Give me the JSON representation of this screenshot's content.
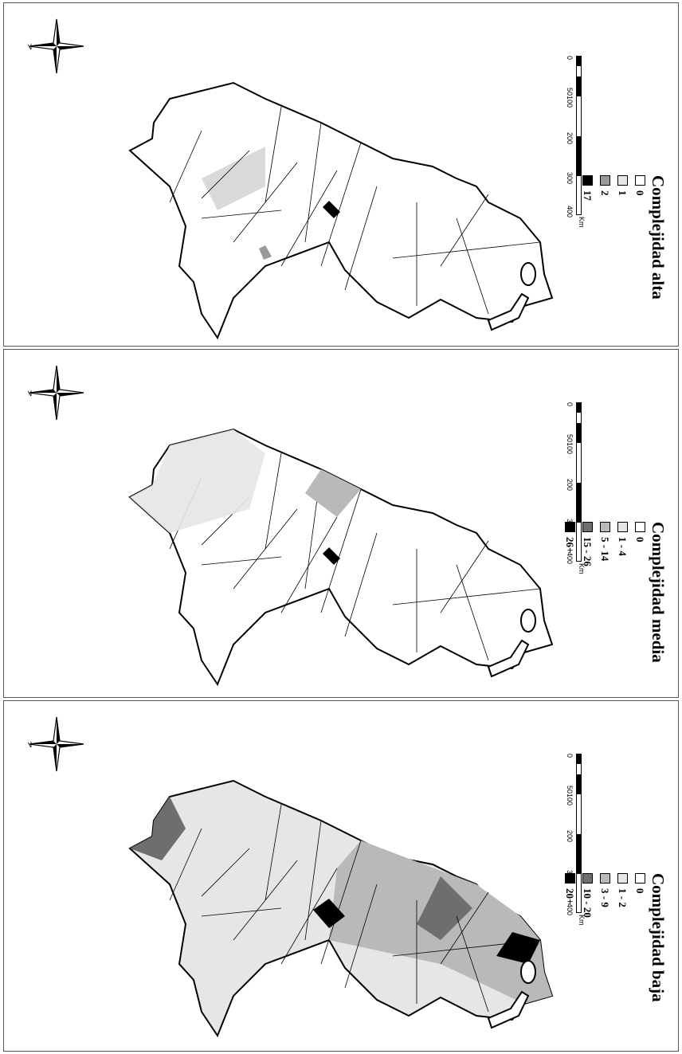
{
  "maps": [
    {
      "title": "Complejidad alta",
      "legend": [
        {
          "label": "0",
          "color": "#ffffff"
        },
        {
          "label": "1",
          "color": "#e6e6e6"
        },
        {
          "label": "2",
          "color": "#9a9a9a"
        },
        {
          "label": "17",
          "color": "#000000"
        }
      ]
    },
    {
      "title": "Complejidad media",
      "legend": [
        {
          "label": "0",
          "color": "#ffffff"
        },
        {
          "label": "1 - 4",
          "color": "#e6e6e6"
        },
        {
          "label": "5 - 14",
          "color": "#b9b9b9"
        },
        {
          "label": "15 - 26",
          "color": "#6e6e6e"
        },
        {
          "label": "26+",
          "color": "#000000"
        }
      ]
    },
    {
      "title": "Complejidad baja",
      "legend": [
        {
          "label": "0",
          "color": "#ffffff"
        },
        {
          "label": "1 - 2",
          "color": "#e6e6e6"
        },
        {
          "label": "3 - 9",
          "color": "#b9b9b9"
        },
        {
          "label": "10 - 20",
          "color": "#6e6e6e"
        },
        {
          "label": "20+",
          "color": "#000000"
        }
      ]
    }
  ],
  "scale": {
    "ticks": [
      "0",
      "50100",
      "200",
      "300",
      "400"
    ],
    "unit": "Km"
  },
  "compass": {
    "label": "N",
    "icon": "compass-rose-icon"
  }
}
